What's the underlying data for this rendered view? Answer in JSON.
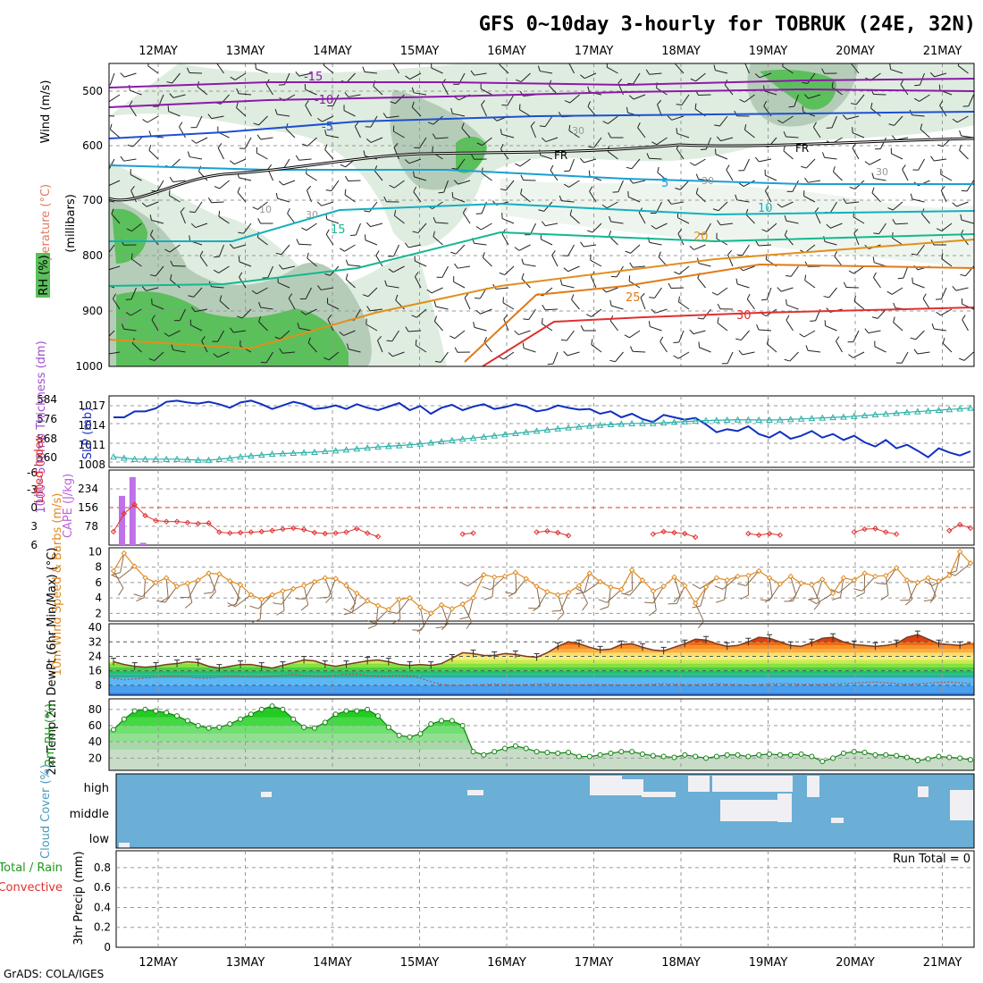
{
  "chart_data": {
    "type": "meteogram",
    "title": "GFS 0~10day 3-hourly for TOBRUK (24E, 32N)",
    "dates": [
      "12MAY",
      "13MAY",
      "14MAY",
      "15MAY",
      "16MAY",
      "17MAY",
      "18MAY",
      "19MAY",
      "20MAY",
      "21MAY"
    ],
    "credit": "GrADS: COLA/IGES",
    "upper_air": {
      "ylabel_rh": "RH (%)",
      "ylabel_temp": "Temperature (°C)",
      "ylabel_wind": "Wind (m/s)",
      "ylabel_unit": "(millibars)",
      "levels": [
        "500",
        "600",
        "700",
        "800",
        "900",
        "1000"
      ],
      "freezing_label": "FR",
      "isotherms": [
        {
          "label": "-15",
          "color": "#8b1aa8"
        },
        {
          "label": "-10",
          "color": "#8b1aa8"
        },
        {
          "label": "-5",
          "color": "#1e50d0"
        },
        {
          "label": "5",
          "color": "#1a9fd4"
        },
        {
          "label": "10",
          "color": "#12b0c0"
        },
        {
          "label": "15",
          "color": "#12b890"
        },
        {
          "label": "20",
          "color": "#e0901a"
        },
        {
          "label": "25",
          "color": "#e07a1a"
        },
        {
          "label": "30",
          "color": "#e03030"
        }
      ],
      "rh_labels": [
        "30",
        "30",
        "30",
        "10",
        "30",
        "70"
      ]
    },
    "slp_thickness": {
      "ylabel_slp": "SLP (mb)",
      "ylabel_thk": "1000~500mb Thickness (dm)",
      "slp_ticks": [
        "1017",
        "1014",
        "1011",
        "1008"
      ],
      "thk_ticks": [
        "584",
        "576",
        "568",
        "560"
      ],
      "slp": [
        1015,
        1015,
        1016,
        1016,
        1016.5,
        1017.6,
        1017.8,
        1017.5,
        1017.3,
        1017.6,
        1017.2,
        1016.6,
        1017.5,
        1017.8,
        1017.2,
        1016.4,
        1017,
        1017.6,
        1017.2,
        1016.4,
        1016.6,
        1017,
        1016.4,
        1017.2,
        1016.6,
        1016.2,
        1016.8,
        1017.4,
        1016.2,
        1016.9,
        1015.6,
        1016.6,
        1017.1,
        1016.2,
        1016.8,
        1017.2,
        1016.4,
        1016.7,
        1017.2,
        1016.8,
        1016,
        1016.3,
        1017,
        1016.6,
        1016.3,
        1016.4,
        1015.6,
        1016,
        1015,
        1015.6,
        1014.7,
        1014.2,
        1015.4,
        1015,
        1014.6,
        1014.9,
        1013.8,
        1012.5,
        1013,
        1012.7,
        1013.5,
        1012.2,
        1011.6,
        1012.6,
        1011.4,
        1011.9,
        1012.7,
        1011.6,
        1012.2,
        1011.2,
        1011.9,
        1010.8,
        1010.1,
        1011.2,
        1009.8,
        1010.4,
        1009.4,
        1008.3,
        1009.8,
        1009.1,
        1008.6,
        1009.3
      ],
      "thickness": [
        561,
        560.5,
        560,
        560,
        560,
        560,
        560,
        559.8,
        559.6,
        559.6,
        560,
        560.4,
        561,
        561.4,
        561.8,
        562.2,
        562.4,
        562.6,
        562.8,
        563,
        563.3,
        563.6,
        564,
        564.4,
        564.8,
        565.2,
        565.5,
        565.8,
        566.1,
        566.5,
        567,
        567.5,
        568,
        568.6,
        569,
        569.5,
        570,
        570.5,
        571,
        571.5,
        572,
        572.5,
        573,
        573.4,
        573.8,
        574.2,
        574.5,
        574.8,
        575,
        575.2,
        575.3,
        575.3,
        575.5,
        575.8,
        576,
        576.3,
        576.5,
        576.6,
        576.7,
        576.8,
        576.8,
        576.7,
        576.7,
        576.8,
        577,
        577.2,
        577.4,
        577.6,
        577.8,
        578,
        578.3,
        578.6,
        579,
        579.3,
        579.6,
        580,
        580.3,
        580.6,
        580.9,
        581.2,
        581.5,
        581.8
      ]
    },
    "lifted_cape": {
      "ylabel_li": "Lifted Index",
      "ylabel_cape": "CAPE (J/kg)",
      "li_ticks": [
        "-6",
        "-3",
        "0",
        "3",
        "6"
      ],
      "cape_ticks": [
        "234",
        "156",
        "78"
      ],
      "cape": [
        210,
        290,
        10,
        0,
        0,
        0,
        0,
        0,
        0,
        0,
        0,
        0,
        0,
        0,
        0,
        0,
        0,
        0,
        0,
        0,
        0,
        0,
        0,
        0,
        0,
        0,
        0,
        0,
        0,
        0,
        0,
        0,
        0,
        0,
        0,
        0,
        0,
        0,
        0,
        0,
        0,
        0,
        0,
        0,
        0,
        0,
        0,
        0,
        0,
        0,
        0,
        0,
        0,
        0,
        0,
        0,
        0,
        0,
        0,
        0,
        0,
        0,
        0,
        0,
        0,
        0,
        0,
        0,
        0,
        0,
        0,
        0,
        0,
        0,
        0,
        0,
        0,
        0,
        0,
        0,
        0,
        0
      ],
      "lifted_index": [
        4.8,
        1.2,
        -0.6,
        1.6,
        2.6,
        2.8,
        2.8,
        3.0,
        3.2,
        3.1,
        4.9,
        5.1,
        5.0,
        4.9,
        4.8,
        4.6,
        4.3,
        4.1,
        4.4,
        5.0,
        5.2,
        5.1,
        4.9,
        4.2,
        5.1,
        5.8,
        null,
        null,
        null,
        null,
        null,
        null,
        null,
        5.3,
        5.1,
        null,
        null,
        null,
        null,
        null,
        4.9,
        4.7,
        5.0,
        5.6,
        null,
        null,
        null,
        null,
        null,
        null,
        null,
        5.3,
        4.8,
        5.0,
        5.2,
        5.9,
        null,
        null,
        null,
        null,
        5.2,
        5.5,
        5.2,
        5.5,
        null,
        null,
        null,
        null,
        null,
        null,
        4.9,
        4.3,
        4.2,
        4.9,
        5.3,
        null,
        null,
        null,
        null,
        4.6,
        3.4,
        4.1
      ]
    },
    "wind10m": {
      "ylabel": "10m Wind Speed & Barbs (m/s)",
      "ticks": [
        "10",
        "8",
        "6",
        "4",
        "2"
      ],
      "speed": [
        7.5,
        9.8,
        8.1,
        6.6,
        6.0,
        6.6,
        5.5,
        5.9,
        6.3,
        7.2,
        7.1,
        6.2,
        5.7,
        4.4,
        3.8,
        4.4,
        4.9,
        5.2,
        5.6,
        6.1,
        6.6,
        6.5,
        5.6,
        4.6,
        3.6,
        3.0,
        2.5,
        3.8,
        4.0,
        2.8,
        2.0,
        3.1,
        2.6,
        3.2,
        4.0,
        7.0,
        6.7,
        6.8,
        7.3,
        6.5,
        5.5,
        4.8,
        4.4,
        4.7,
        5.6,
        7.2,
        6.1,
        5.4,
        5.1,
        7.6,
        6.3,
        4.9,
        5.5,
        6.7,
        5.6,
        3.3,
        5.4,
        6.6,
        6.3,
        6.8,
        6.9,
        7.5,
        6.6,
        5.8,
        6.8,
        5.9,
        5.7,
        6.4,
        4.6,
        6.6,
        6.3,
        7.2,
        6.8,
        6.9,
        7.9,
        6.3,
        6.0,
        6.6,
        6.2,
        6.9,
        10.0,
        8.5
      ]
    },
    "temp2m": {
      "ylabel": "2m Temp 2m DewPt (6hr Min/Max) (°C)",
      "ticks": [
        "40",
        "32",
        "24",
        "16",
        "8"
      ],
      "temp": [
        21,
        19.5,
        18.5,
        18,
        18.5,
        19.5,
        20,
        21,
        20.5,
        18.5,
        17.5,
        18.5,
        19.5,
        19.5,
        18.5,
        17.5,
        19,
        20.5,
        22,
        21.5,
        19.5,
        18.5,
        19.5,
        20.5,
        21.5,
        22,
        21,
        19.5,
        19,
        19.5,
        19,
        20,
        23,
        26,
        25.5,
        24.5,
        24.5,
        25.5,
        25,
        24,
        23.5,
        26,
        29.5,
        32,
        31,
        29,
        27.5,
        28,
        30.5,
        31,
        29,
        27.5,
        27,
        29,
        31,
        33.5,
        33,
        31,
        29.5,
        30,
        32,
        34.5,
        34,
        32,
        30,
        29.5,
        31.5,
        34,
        34.5,
        32,
        30.5,
        30,
        29.5,
        30,
        31,
        34.5,
        36,
        33.5,
        31,
        30.5,
        30,
        31.5
      ],
      "dewpt": [
        12,
        11,
        11.5,
        12,
        12.5,
        13,
        13,
        12.5,
        12,
        12,
        12.5,
        13,
        13,
        12.5,
        12.5,
        13,
        13.5,
        14,
        13.5,
        13,
        13,
        13.5,
        14,
        14,
        13.5,
        13,
        13,
        13.5,
        13,
        12,
        10,
        8.5,
        8,
        8,
        8.2,
        8.4,
        8.6,
        8.4,
        8.2,
        8.4,
        8.6,
        8.8,
        8.5,
        8.2,
        8.2,
        8.3,
        8.4,
        8.3,
        8.2,
        8.2,
        8.4,
        8.6,
        8.8,
        8.6,
        8.4,
        8.4,
        8.6,
        8.8,
        8.6,
        8.4,
        8.2,
        8.4,
        8.8,
        9,
        8.8,
        8.6,
        8.5,
        8.6,
        8.8,
        9,
        9.2,
        9.6,
        9.8,
        9.4,
        9,
        8.6,
        8.8,
        9.2,
        9.6,
        9.8,
        9.4,
        9
      ]
    },
    "rh2m": {
      "ylabel": "2m RH (%)",
      "ticks": [
        "80",
        "60",
        "40",
        "20"
      ],
      "rh": [
        55,
        68,
        78,
        80,
        78,
        76,
        72,
        66,
        60,
        57,
        58,
        62,
        68,
        74,
        80,
        84,
        80,
        68,
        58,
        57,
        64,
        74,
        78,
        78,
        80,
        72,
        58,
        48,
        46,
        50,
        62,
        66,
        66,
        60,
        28,
        24,
        28,
        32,
        35,
        32,
        28,
        27,
        26,
        27,
        22,
        22,
        24,
        26,
        28,
        28,
        25,
        23,
        22,
        21,
        24,
        22,
        20,
        22,
        24,
        24,
        22,
        24,
        25,
        24,
        24,
        25,
        22,
        16,
        20,
        26,
        28,
        27,
        24,
        24,
        23,
        21,
        17,
        19,
        22,
        21,
        20,
        18
      ]
    },
    "cloud": {
      "ylabel": "Cloud Cover (%)",
      "levels": [
        "high",
        "middle",
        "low"
      ]
    },
    "precip": {
      "ylabel_main": "3hr Precip (mm)",
      "ylabel_total": "Total / Rain",
      "ylabel_conv": "Convective",
      "ticks": [
        "0.8",
        "0.6",
        "0.4",
        "0.2",
        "0"
      ],
      "run_total": "Run Total = 0",
      "values": []
    }
  }
}
